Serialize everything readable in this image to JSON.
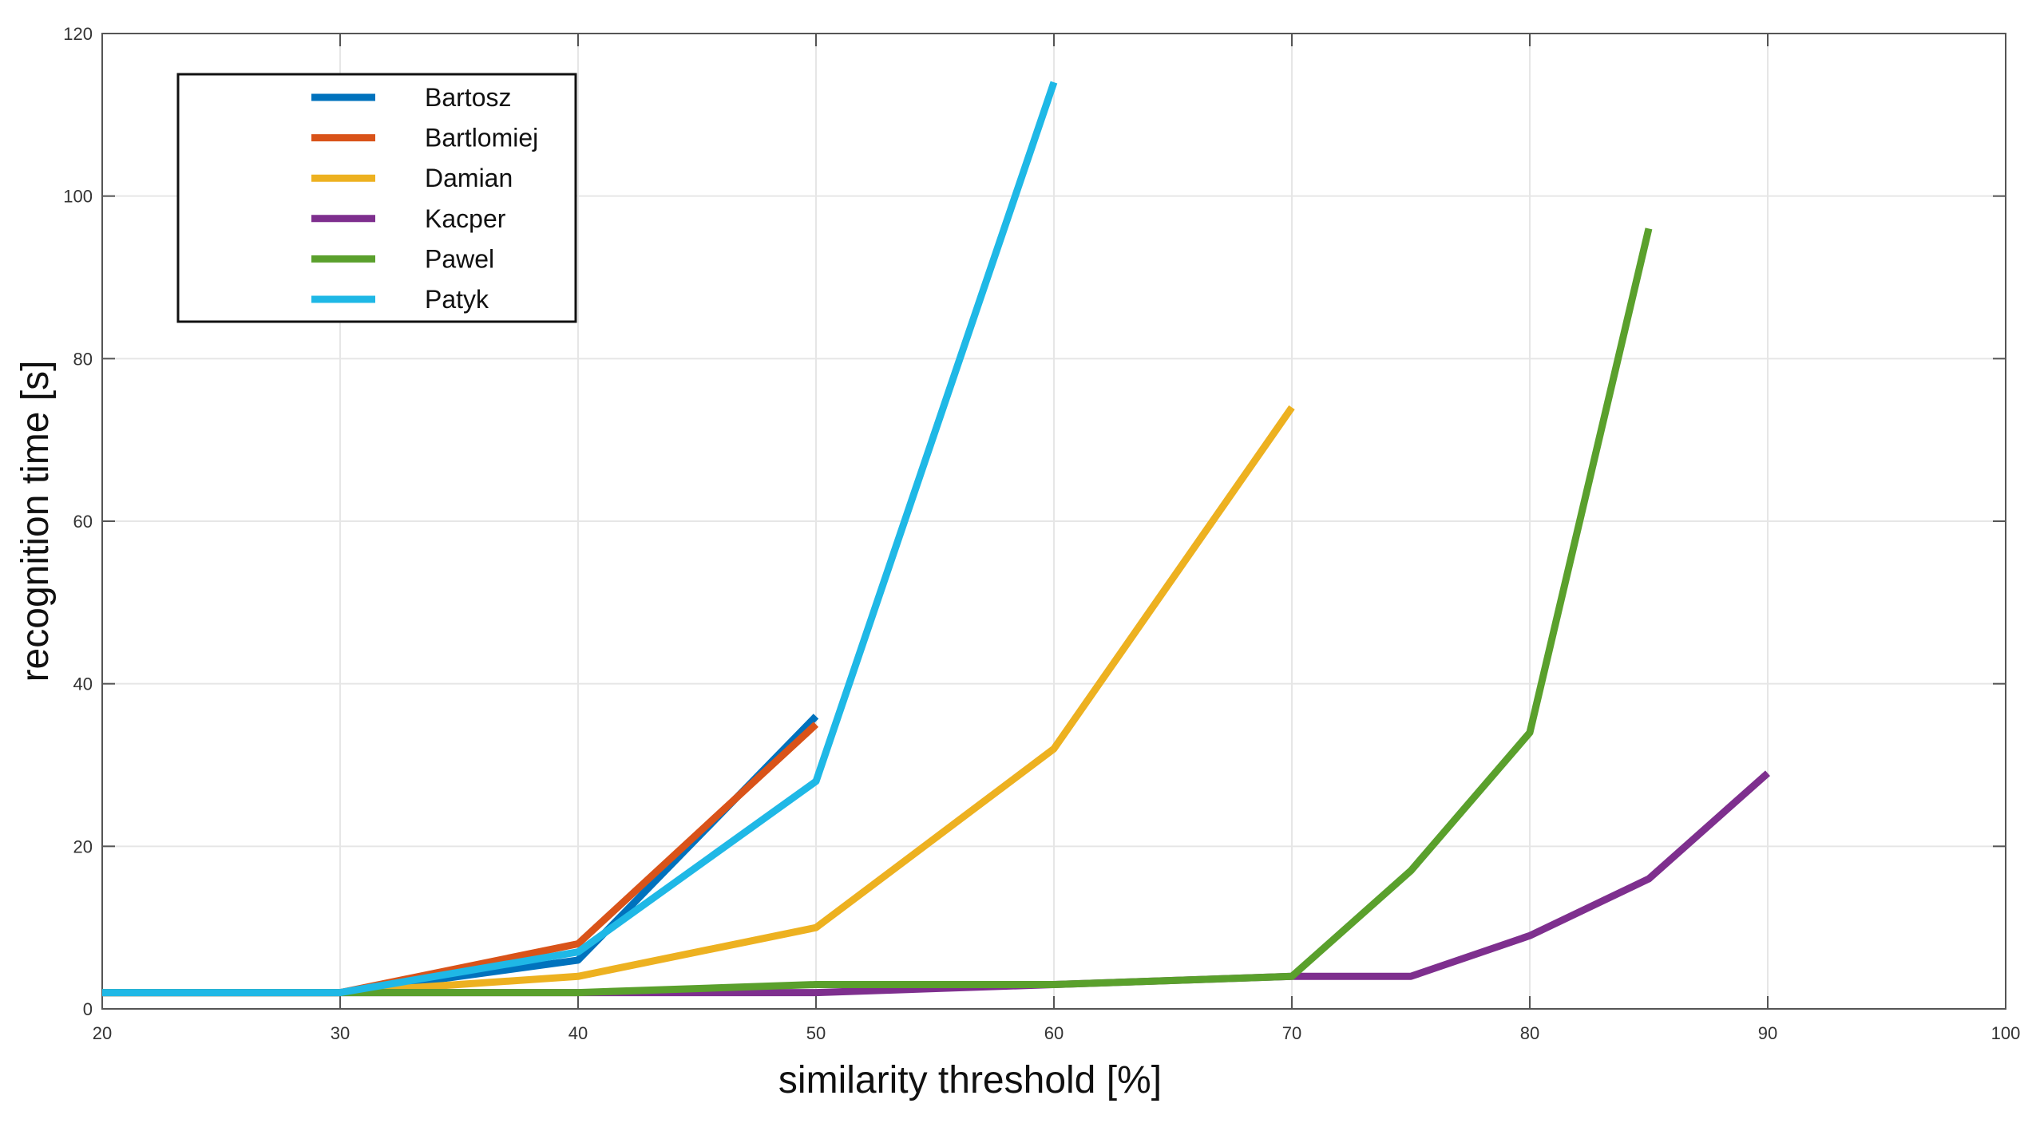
{
  "chart_data": {
    "type": "line",
    "title": "",
    "xlabel": "similarity threshold [%]",
    "ylabel": "recognition time [s]",
    "xlim": [
      20,
      100
    ],
    "ylim": [
      0,
      120
    ],
    "xticks": [
      20,
      30,
      40,
      50,
      60,
      70,
      80,
      90,
      100
    ],
    "yticks": [
      0,
      20,
      40,
      60,
      80,
      100,
      120
    ],
    "grid": true,
    "legend_position": "top-left",
    "series": [
      {
        "name": "Bartosz",
        "color": "#0072bd",
        "points": [
          [
            20,
            2
          ],
          [
            30,
            2
          ],
          [
            40,
            6
          ],
          [
            50,
            36
          ]
        ]
      },
      {
        "name": "Bartlomiej",
        "color": "#d95319",
        "points": [
          [
            20,
            2
          ],
          [
            30,
            2
          ],
          [
            40,
            8
          ],
          [
            50,
            35
          ]
        ]
      },
      {
        "name": "Damian",
        "color": "#edb120",
        "points": [
          [
            20,
            2
          ],
          [
            30,
            2
          ],
          [
            40,
            4
          ],
          [
            50,
            10
          ],
          [
            60,
            32
          ],
          [
            70,
            74
          ]
        ]
      },
      {
        "name": "Kacper",
        "color": "#7e2f8e",
        "points": [
          [
            20,
            2
          ],
          [
            30,
            2
          ],
          [
            40,
            2
          ],
          [
            50,
            2
          ],
          [
            60,
            3
          ],
          [
            70,
            4
          ],
          [
            75,
            4
          ],
          [
            80,
            9
          ],
          [
            85,
            16
          ],
          [
            90,
            29
          ]
        ]
      },
      {
        "name": "Pawel",
        "color": "#5aa02c",
        "points": [
          [
            20,
            2
          ],
          [
            30,
            2
          ],
          [
            40,
            2
          ],
          [
            50,
            3
          ],
          [
            60,
            3
          ],
          [
            70,
            4
          ],
          [
            75,
            17
          ],
          [
            80,
            34
          ],
          [
            85,
            96
          ]
        ]
      },
      {
        "name": "Patyk",
        "color": "#1fb8e6",
        "points": [
          [
            20,
            2
          ],
          [
            30,
            2
          ],
          [
            40,
            7
          ],
          [
            50,
            28
          ],
          [
            60,
            114
          ]
        ]
      }
    ]
  }
}
